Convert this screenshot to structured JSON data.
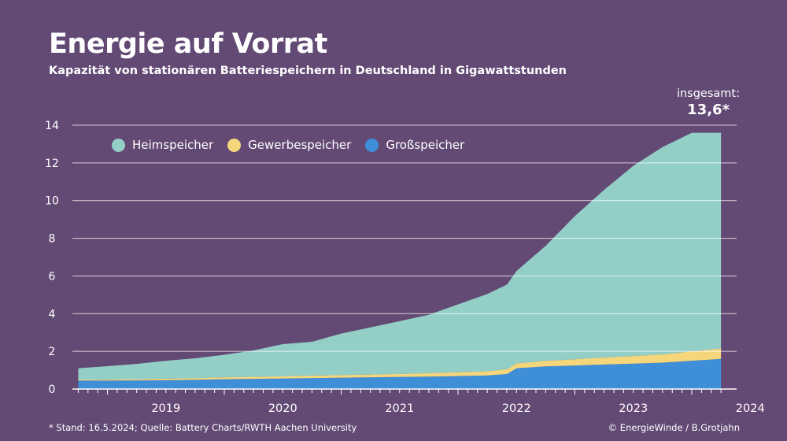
{
  "title": "Energie auf Vorrat",
  "subtitle": "Kapazität von stationären Batteriespeichern in Deutschland in Gigawattstunden",
  "total": {
    "label": "insgesamt:",
    "value": "13,6*"
  },
  "footer": {
    "source": "* Stand: 16.5.2024; Quelle: Battery Charts/RWTH Aachen University",
    "credit": "© EnergieWinde / B.Grotjahn"
  },
  "colors": {
    "background": "#634a75",
    "heimspeicher": "#93cfc6",
    "gewerbespeicher": "#f6d67a",
    "grossspeicher": "#3e8fd8"
  },
  "legend": [
    {
      "label": "Heimspeicher",
      "color": "#93cfc6"
    },
    {
      "label": "Gewerbespeicher",
      "color": "#f6d67a"
    },
    {
      "label": "Großspeicher",
      "color": "#3e8fd8"
    }
  ],
  "chart_data": {
    "type": "area",
    "stacked": true,
    "title": "Energie auf Vorrat",
    "ylabel": "",
    "xlabel": "",
    "ylim": [
      0,
      14
    ],
    "yticks": [
      0,
      2,
      4,
      6,
      8,
      10,
      12,
      14
    ],
    "xlim": [
      2018.7,
      2024.33
    ],
    "xticks": [
      {
        "label": "2019",
        "pos": 2019.0
      },
      {
        "label": "2020",
        "pos": 2020.0
      },
      {
        "label": "2021",
        "pos": 2021.0
      },
      {
        "label": "2022",
        "pos": 2022.0
      },
      {
        "label": "2023",
        "pos": 2023.0
      },
      {
        "label": "2024",
        "pos": 2024.0
      }
    ],
    "grid": true,
    "legend_position": "top-left",
    "x": [
      2018.75,
      2019.0,
      2019.25,
      2019.5,
      2019.75,
      2020.0,
      2020.25,
      2020.5,
      2020.75,
      2021.0,
      2021.25,
      2021.5,
      2021.75,
      2022.0,
      2022.25,
      2022.42,
      2022.5,
      2022.75,
      2023.0,
      2023.25,
      2023.5,
      2023.75,
      2024.0,
      2024.25
    ],
    "series": [
      {
        "name": "Großspeicher",
        "values": [
          0.45,
          0.45,
          0.46,
          0.47,
          0.49,
          0.52,
          0.54,
          0.56,
          0.58,
          0.6,
          0.62,
          0.64,
          0.66,
          0.69,
          0.72,
          0.8,
          1.1,
          1.2,
          1.25,
          1.3,
          1.35,
          1.4,
          1.5,
          1.6
        ]
      },
      {
        "name": "Gewerbespeicher",
        "values": [
          0.05,
          0.06,
          0.07,
          0.08,
          0.09,
          0.1,
          0.11,
          0.12,
          0.13,
          0.14,
          0.15,
          0.16,
          0.18,
          0.2,
          0.22,
          0.25,
          0.26,
          0.3,
          0.33,
          0.37,
          0.4,
          0.44,
          0.5,
          0.55
        ]
      },
      {
        "name": "Heimspeicher",
        "values": [
          0.6,
          0.7,
          0.8,
          0.95,
          1.05,
          1.2,
          1.4,
          1.7,
          1.8,
          2.2,
          2.5,
          2.8,
          3.1,
          3.6,
          4.1,
          4.5,
          4.9,
          6.1,
          7.6,
          8.9,
          10.1,
          11.0,
          11.6,
          11.45
        ]
      }
    ]
  }
}
